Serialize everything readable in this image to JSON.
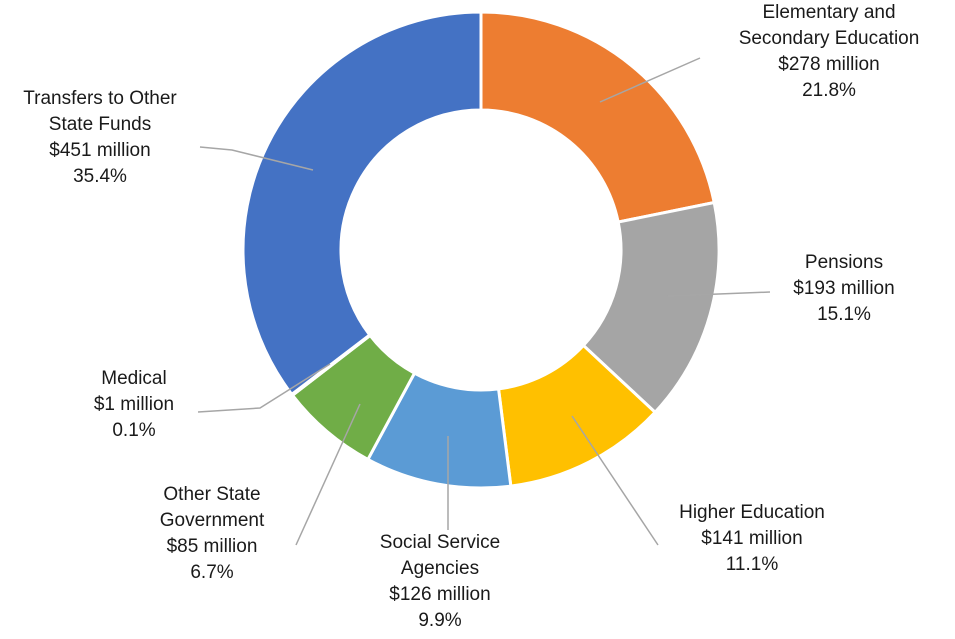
{
  "chart_data": {
    "type": "pie",
    "variant": "donut",
    "title": "",
    "slices": [
      {
        "name_lines": [
          "Elementary and",
          "Secondary Education"
        ],
        "amount": "$278 million",
        "percent_label": "21.8%",
        "value": 278,
        "percent": 21.8,
        "color": "#ED7D31"
      },
      {
        "name_lines": [
          "Pensions"
        ],
        "amount": "$193 million",
        "percent_label": "15.1%",
        "value": 193,
        "percent": 15.1,
        "color": "#A5A5A5"
      },
      {
        "name_lines": [
          "Higher Education"
        ],
        "amount": "$141 million",
        "percent_label": "11.1%",
        "value": 141,
        "percent": 11.1,
        "color": "#FFC000"
      },
      {
        "name_lines": [
          "Social Service",
          "Agencies"
        ],
        "amount": "$126 million",
        "percent_label": "9.9%",
        "value": 126,
        "percent": 9.9,
        "color": "#5B9BD5"
      },
      {
        "name_lines": [
          "Other State",
          "Government"
        ],
        "amount": "$85 million",
        "percent_label": "6.7%",
        "value": 85,
        "percent": 6.7,
        "color": "#70AD47"
      },
      {
        "name_lines": [
          "Medical"
        ],
        "amount": "$1 million",
        "percent_label": "0.1%",
        "value": 1,
        "percent": 0.1,
        "color": "#264478"
      },
      {
        "name_lines": [
          "Transfers to Other",
          "State Funds"
        ],
        "amount": "$451 million",
        "percent_label": "35.4%",
        "value": 451,
        "percent": 35.4,
        "color": "#4472C4"
      }
    ],
    "legend": "none",
    "start_angle": "12 o'clock",
    "direction": "clockwise"
  }
}
